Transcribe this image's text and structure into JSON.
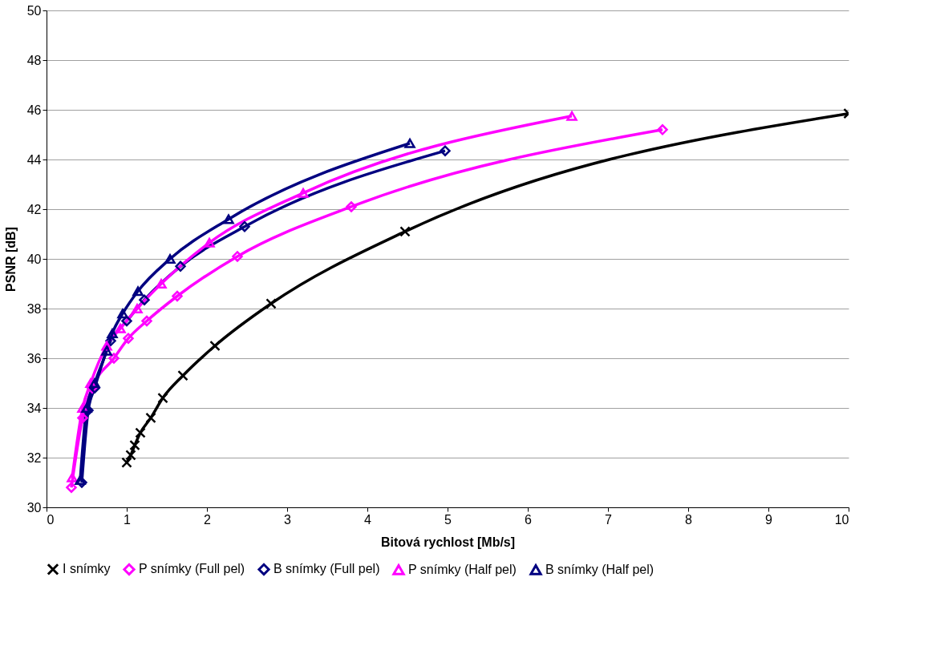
{
  "chart_data": {
    "type": "line",
    "xlabel": "Bitová rychlost [Mb/s]",
    "ylabel": "PSNR [dB]",
    "xlim": [
      0,
      10
    ],
    "xticks": [
      0,
      1,
      2,
      3,
      4,
      5,
      6,
      7,
      8,
      9,
      10
    ],
    "ylim": [
      30,
      50
    ],
    "yticks": [
      30,
      32,
      34,
      36,
      38,
      40,
      42,
      44,
      46,
      48,
      50
    ],
    "grid": "y",
    "legend": "bottom",
    "series": [
      {
        "name": "I snímky",
        "color": "#000000",
        "marker": "cross",
        "x": [
          1.0,
          1.05,
          1.1,
          1.17,
          1.3,
          1.45,
          1.7,
          2.1,
          2.8,
          4.47,
          10
        ],
        "values": [
          31.8,
          32.1,
          32.5,
          33.0,
          33.6,
          34.4,
          35.3,
          36.5,
          38.2,
          41.1,
          45.85
        ]
      },
      {
        "name": "P snímky (Full pel)",
        "color": "#ff00ff",
        "marker": "diamond",
        "x": [
          0.31,
          0.45,
          0.57,
          0.84,
          1.02,
          1.25,
          1.63,
          2.38,
          3.8,
          7.68
        ],
        "values": [
          30.8,
          33.6,
          34.8,
          36.0,
          36.8,
          37.5,
          38.5,
          40.1,
          42.1,
          45.2
        ]
      },
      {
        "name": "B snímky (Full pel)",
        "color": "#000080",
        "marker": "diamond",
        "x": [
          0.44,
          0.52,
          0.6,
          0.8,
          1.0,
          1.22,
          1.67,
          2.47,
          4.97
        ],
        "values": [
          31.0,
          33.9,
          34.8,
          36.7,
          37.5,
          38.35,
          39.7,
          41.3,
          44.35
        ]
      },
      {
        "name": "P snímky (Half pel)",
        "color": "#ff00ff",
        "marker": "triangle",
        "x": [
          0.32,
          0.45,
          0.55,
          0.75,
          0.92,
          1.13,
          1.43,
          2.03,
          3.2,
          6.55
        ],
        "values": [
          31.2,
          34.0,
          35.0,
          36.5,
          37.2,
          38.0,
          39.0,
          40.65,
          42.65,
          45.75
        ]
      },
      {
        "name": "B snímky (Half pel)",
        "color": "#000080",
        "marker": "triangle",
        "x": [
          0.42,
          0.5,
          0.6,
          0.75,
          0.82,
          0.95,
          1.14,
          1.54,
          2.27,
          4.53
        ],
        "values": [
          31.1,
          34.0,
          35.0,
          36.3,
          37.0,
          37.8,
          38.7,
          40.0,
          41.6,
          44.65
        ]
      }
    ]
  }
}
